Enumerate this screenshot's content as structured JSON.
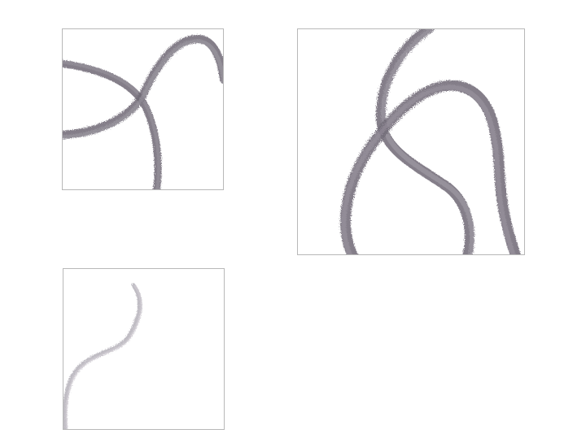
{
  "panels": [
    {
      "name": "top-left",
      "stroke_color": "#6e6874",
      "stroke_count": 2
    },
    {
      "name": "top-right",
      "stroke_color": "#6e6874",
      "stroke_count": 2
    },
    {
      "name": "bottom-left",
      "stroke_color": "#b4b0b8",
      "stroke_count": 1
    }
  ]
}
